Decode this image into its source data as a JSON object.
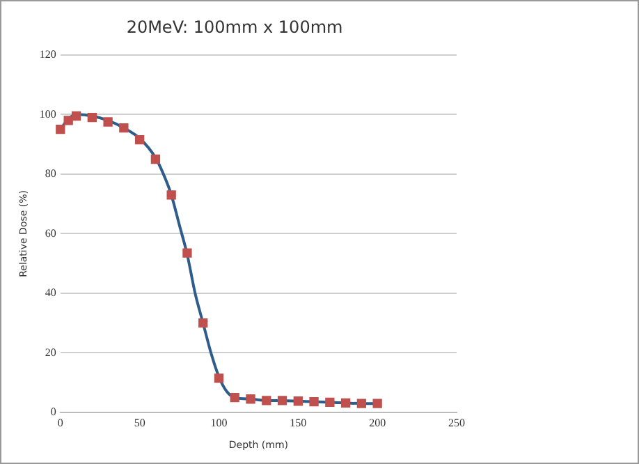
{
  "chart_data": {
    "type": "line",
    "title": "20MeV: 100mm x 100mm",
    "xlabel": "Depth (mm)",
    "ylabel": "Relative Dose (%)",
    "xlim": [
      0,
      250
    ],
    "xticks": [
      0,
      50,
      100,
      150,
      200,
      250
    ],
    "ylim": [
      0,
      120
    ],
    "yticks": [
      0,
      20,
      40,
      60,
      80,
      100,
      120
    ],
    "grid": "y",
    "legend": false,
    "series": [
      {
        "color": "#2e5d8c",
        "marker": "none",
        "line_style": "solid",
        "x": [
          0,
          5,
          10,
          20,
          30,
          40,
          50,
          60,
          65,
          70,
          75,
          80,
          85,
          90,
          95,
          100,
          105,
          110,
          120,
          130,
          140,
          150,
          160,
          170,
          180,
          190,
          200
        ],
        "values": [
          95,
          98.5,
          100,
          99.5,
          98,
          95.5,
          92,
          85.5,
          80,
          73,
          63,
          53,
          40,
          30,
          20,
          12,
          7,
          5,
          4.5,
          4,
          4,
          3.8,
          3.6,
          3.4,
          3.2,
          3,
          3
        ]
      },
      {
        "type": "scatter",
        "color": "#c0504d",
        "marker": "square",
        "x": [
          0,
          5,
          10,
          20,
          30,
          40,
          50,
          60,
          70,
          80,
          90,
          100,
          110,
          120,
          130,
          140,
          150,
          160,
          170,
          180,
          190,
          200
        ],
        "values": [
          95,
          98,
          99.5,
          99,
          97.5,
          95.5,
          91.5,
          85,
          73,
          53.5,
          30,
          11.5,
          5,
          4.5,
          4,
          4,
          3.8,
          3.6,
          3.4,
          3.2,
          3,
          3
        ]
      }
    ]
  }
}
